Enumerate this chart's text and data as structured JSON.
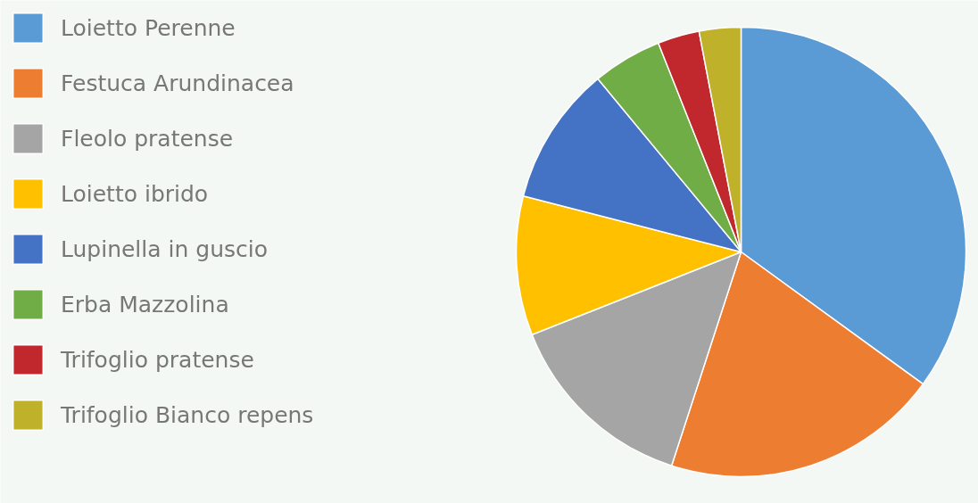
{
  "chart_data": {
    "type": "pie",
    "legend": "top left",
    "categories": [
      "Loietto Perenne",
      "Festuca Arundinacea",
      "Fleolo pratense",
      "Loietto ibrido",
      "Lupinella in guscio",
      "Erba Mazzolina",
      "Trifoglio pratense",
      "Trifoglio Bianco repens"
    ],
    "values": [
      35,
      20,
      14,
      10,
      10,
      5,
      3,
      3
    ],
    "colors": [
      "#5b9bd5",
      "#ed7d31",
      "#a5a5a5",
      "#ffc000",
      "#4472c4",
      "#70ad47",
      "#c0282d",
      "#bfb12a"
    ]
  }
}
